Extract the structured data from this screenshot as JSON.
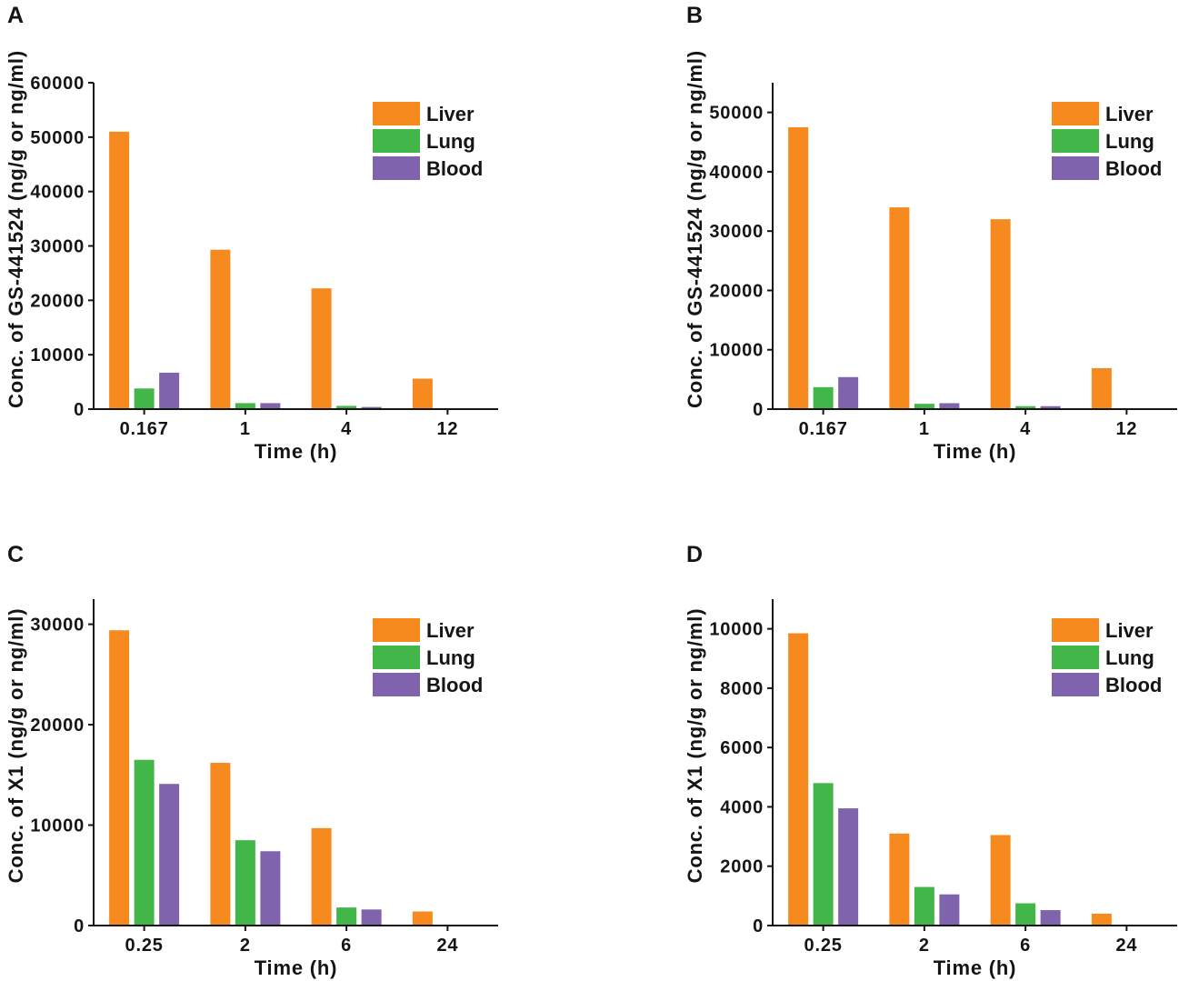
{
  "chart_data": [
    {
      "panel": "A",
      "type": "bar",
      "xlabel": "Time (h)",
      "ylabel": "Conc. of GS-441524 (ng/g or ng/ml)",
      "categories": [
        "0.167",
        "1",
        "4",
        "12"
      ],
      "series": [
        {
          "name": "Liver",
          "color": "#F68A1E",
          "values": [
            51000,
            29300,
            22200,
            5600
          ]
        },
        {
          "name": "Lung",
          "color": "#43B649",
          "values": [
            3800,
            1100,
            600,
            0
          ]
        },
        {
          "name": "Blood",
          "color": "#7F63AD",
          "values": [
            6700,
            1100,
            400,
            0
          ]
        }
      ],
      "ylim": [
        0,
        60000
      ],
      "yticks": [
        0,
        10000,
        20000,
        30000,
        40000,
        50000,
        60000
      ],
      "legend_position": "top-right",
      "grid": false
    },
    {
      "panel": "B",
      "type": "bar",
      "xlabel": "Time (h)",
      "ylabel": "Conc. of GS-441524 (ng/g or ng/ml)",
      "categories": [
        "0.167",
        "1",
        "4",
        "12"
      ],
      "series": [
        {
          "name": "Liver",
          "color": "#F68A1E",
          "values": [
            47500,
            34000,
            32000,
            6900
          ]
        },
        {
          "name": "Lung",
          "color": "#43B649",
          "values": [
            3700,
            900,
            500,
            0
          ]
        },
        {
          "name": "Blood",
          "color": "#7F63AD",
          "values": [
            5400,
            1000,
            500,
            0
          ]
        }
      ],
      "ylim": [
        0,
        55000
      ],
      "yticks": [
        0,
        10000,
        20000,
        30000,
        40000,
        50000
      ],
      "legend_position": "top-right",
      "grid": false
    },
    {
      "panel": "C",
      "type": "bar",
      "xlabel": "Time (h)",
      "ylabel": "Conc. of X1 (ng/g or ng/ml)",
      "categories": [
        "0.25",
        "2",
        "6",
        "24"
      ],
      "series": [
        {
          "name": "Liver",
          "color": "#F68A1E",
          "values": [
            29400,
            16200,
            9700,
            1400
          ]
        },
        {
          "name": "Lung",
          "color": "#43B649",
          "values": [
            16500,
            8500,
            1800,
            0
          ]
        },
        {
          "name": "Blood",
          "color": "#7F63AD",
          "values": [
            14100,
            7400,
            1600,
            0
          ]
        }
      ],
      "ylim": [
        0,
        32500
      ],
      "yticks": [
        0,
        10000,
        20000,
        30000
      ],
      "legend_position": "top-right",
      "grid": false
    },
    {
      "panel": "D",
      "type": "bar",
      "xlabel": "Time (h)",
      "ylabel": "Conc. of X1 (ng/g or ng/ml)",
      "categories": [
        "0.25",
        "2",
        "6",
        "24"
      ],
      "series": [
        {
          "name": "Liver",
          "color": "#F68A1E",
          "values": [
            9850,
            3100,
            3050,
            400
          ]
        },
        {
          "name": "Lung",
          "color": "#43B649",
          "values": [
            4800,
            1300,
            750,
            0
          ]
        },
        {
          "name": "Blood",
          "color": "#7F63AD",
          "values": [
            3950,
            1050,
            520,
            0
          ]
        }
      ],
      "ylim": [
        0,
        11000
      ],
      "yticks": [
        0,
        2000,
        4000,
        6000,
        8000,
        10000
      ],
      "legend_position": "top-right",
      "grid": false
    }
  ]
}
